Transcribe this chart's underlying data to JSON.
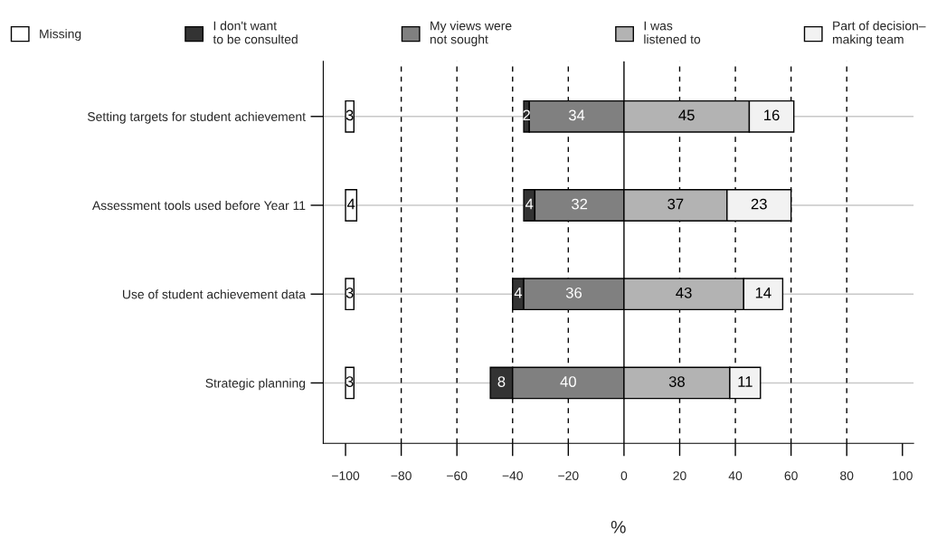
{
  "chart_data": {
    "type": "bar",
    "orientation": "horizontal",
    "xlabel": "%",
    "categories": [
      "Setting targets for student achievement",
      "Assessment tools used before Year 11",
      "Use of student achievement data",
      "Strategic planning"
    ],
    "series": [
      {
        "name": "Missing",
        "color": "#ffffff",
        "base": [
          -100,
          -100,
          -100,
          -100
        ],
        "values": [
          3,
          4,
          3,
          3
        ],
        "value_labels": [
          "3",
          "4",
          "3",
          "3"
        ]
      },
      {
        "name": "I don't want\nto be consulted",
        "color": "#333333",
        "base": [
          -34,
          -32,
          -36,
          -40
        ],
        "values": [
          -2,
          -4,
          -4,
          -8
        ],
        "value_labels": [
          "2",
          "4",
          "4",
          "8"
        ]
      },
      {
        "name": "My views were\nnot sought",
        "color": "#808080",
        "base": [
          0,
          0,
          0,
          0
        ],
        "values": [
          -34,
          -32,
          -36,
          -40
        ],
        "value_labels": [
          "34",
          "32",
          "36",
          "40"
        ]
      },
      {
        "name": "I was\nlistened to",
        "color": "#b3b3b3",
        "base": [
          0,
          0,
          0,
          0
        ],
        "values": [
          45,
          37,
          43,
          38
        ],
        "value_labels": [
          "45",
          "37",
          "43",
          "38"
        ]
      },
      {
        "name": "Part of decision–\nmaking team",
        "color": "#f2f2f2",
        "base": [
          45,
          37,
          43,
          38
        ],
        "values": [
          16,
          23,
          14,
          11
        ],
        "value_labels": [
          "16",
          "23",
          "14",
          "11"
        ]
      }
    ],
    "xlim": [
      -108,
      104
    ],
    "xticks": [
      {
        "value": -100,
        "label": "−100"
      },
      {
        "value": -80,
        "label": "−80"
      },
      {
        "value": -60,
        "label": "−60"
      },
      {
        "value": -40,
        "label": "−40"
      },
      {
        "value": -20,
        "label": "−20"
      },
      0,
      20,
      40,
      60,
      80,
      100
    ],
    "grid": "y",
    "legend": "top",
    "ref_lines": [
      {
        "axis": "x",
        "value": -80,
        "line_style": "dashed",
        "color": "#000000"
      },
      {
        "axis": "x",
        "value": -60,
        "line_style": "dashed",
        "color": "#000000"
      },
      {
        "axis": "x",
        "value": -40,
        "line_style": "dashed",
        "color": "#000000"
      },
      {
        "axis": "x",
        "value": -20,
        "line_style": "dashed",
        "color": "#000000"
      },
      {
        "axis": "x",
        "value": 0,
        "line_style": "solid",
        "color": "#000000"
      },
      {
        "axis": "x",
        "value": 20,
        "line_style": "dashed",
        "color": "#000000"
      },
      {
        "axis": "x",
        "value": 40,
        "line_style": "dashed",
        "color": "#000000"
      },
      {
        "axis": "x",
        "value": 60,
        "line_style": "dashed",
        "color": "#000000"
      },
      {
        "axis": "x",
        "value": 80,
        "line_style": "dashed",
        "color": "#000000"
      }
    ]
  }
}
